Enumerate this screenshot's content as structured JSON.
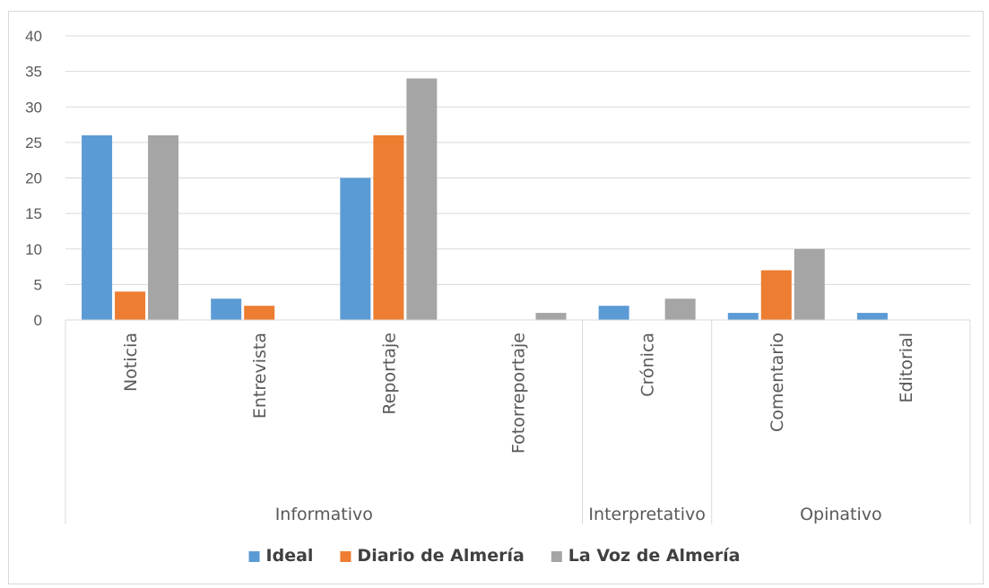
{
  "chart_data": {
    "type": "bar",
    "categories": [
      "Noticia",
      "Entrevista",
      "Reportaje",
      "Fotorreportaje",
      "Crónica",
      "Comentario",
      "Editorial"
    ],
    "groups": [
      {
        "label": "Informativo",
        "categories": [
          "Noticia",
          "Entrevista",
          "Reportaje",
          "Fotorreportaje"
        ]
      },
      {
        "label": "Interpretativo",
        "categories": [
          "Crónica"
        ]
      },
      {
        "label": "Opinativo",
        "categories": [
          "Comentario",
          "Editorial"
        ]
      }
    ],
    "series": [
      {
        "name": "Ideal",
        "color": "#5b9bd5",
        "values": [
          26,
          3,
          20,
          0,
          2,
          1,
          1
        ]
      },
      {
        "name": "Diario de Almería",
        "color": "#ed7d31",
        "values": [
          4,
          2,
          26,
          0,
          0,
          7,
          0
        ]
      },
      {
        "name": "La Voz de Almería",
        "color": "#a5a5a5",
        "values": [
          26,
          0,
          34,
          1,
          3,
          10,
          0
        ]
      }
    ],
    "ylim": [
      0,
      40
    ],
    "yticks": [
      0,
      5,
      10,
      15,
      20,
      25,
      30,
      35,
      40
    ],
    "grid": true,
    "legend_position": "bottom"
  }
}
